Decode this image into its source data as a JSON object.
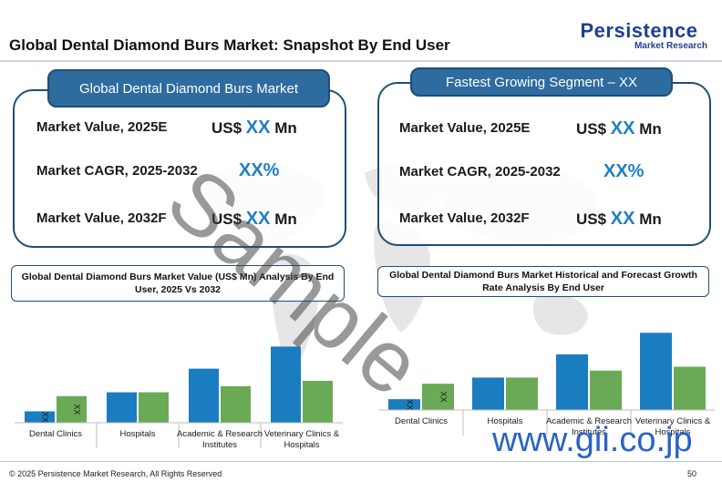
{
  "header": {
    "title": "Global Dental Diamond Burs Market: Snapshot By End User",
    "logo_name": "Persistence",
    "logo_sub": "Market Research"
  },
  "left_panel": {
    "title": "Global Dental Diamond Burs Market",
    "rows": [
      {
        "label": "Market Value, 2025E",
        "prefix": "US$ ",
        "value": "XX",
        "suffix": " Mn"
      },
      {
        "label": "Market CAGR, 2025-2032",
        "value": "XX%"
      },
      {
        "label": "Market Value, 2032F",
        "prefix": "US$ ",
        "value": "XX",
        "suffix": " Mn"
      }
    ]
  },
  "right_panel": {
    "title": "Fastest Growing Segment – XX",
    "rows": [
      {
        "label": "Market Value, 2025E",
        "prefix": "US$ ",
        "value": "XX",
        "suffix": " Mn"
      },
      {
        "label": "Market CAGR, 2025-2032",
        "value": "XX%"
      },
      {
        "label": "Market Value, 2032F",
        "prefix": "US$ ",
        "value": "XX",
        "suffix": " Mn"
      }
    ]
  },
  "chart_data": [
    {
      "type": "bar",
      "title": "Global Dental Diamond Burs Market Value (US$ Mn) Analysis By End User, 2025 Vs 2032",
      "categories": [
        "Dental Clinics",
        "Hospitals",
        "Academic & Research Institutes",
        "Veterinary Clinics & Hospitals"
      ],
      "series": [
        {
          "values": [
            15,
            40,
            71,
            100
          ],
          "color": "#1a7dc0",
          "bar_label": "XX"
        },
        {
          "values": [
            35,
            40,
            48,
            55
          ],
          "color": "#6aaa56",
          "bar_label": "XX"
        }
      ],
      "ylim": [
        0,
        110
      ],
      "labeled_category": 0
    },
    {
      "type": "bar",
      "title": "Global Dental Diamond Burs Market Historical and Forecast Growth Rate Analysis By End User",
      "categories": [
        "Dental Clinics",
        "Hospitals",
        "Academic & Research Institutes",
        "Veterinary Clinics & Hospitals"
      ],
      "series": [
        {
          "values": [
            14,
            42,
            72,
            100
          ],
          "color": "#1a7dc0",
          "bar_label": "XX"
        },
        {
          "values": [
            34,
            42,
            51,
            56
          ],
          "color": "#6aaa56",
          "bar_label": "XX"
        }
      ],
      "ylim": [
        0,
        105
      ],
      "labeled_category": 0
    }
  ],
  "watermark": "Sample",
  "site_mark": "www.gii.co.jp",
  "footer": {
    "copyright": "© 2025 Persistence Market Research, All Rights Reserved",
    "page": "50"
  }
}
